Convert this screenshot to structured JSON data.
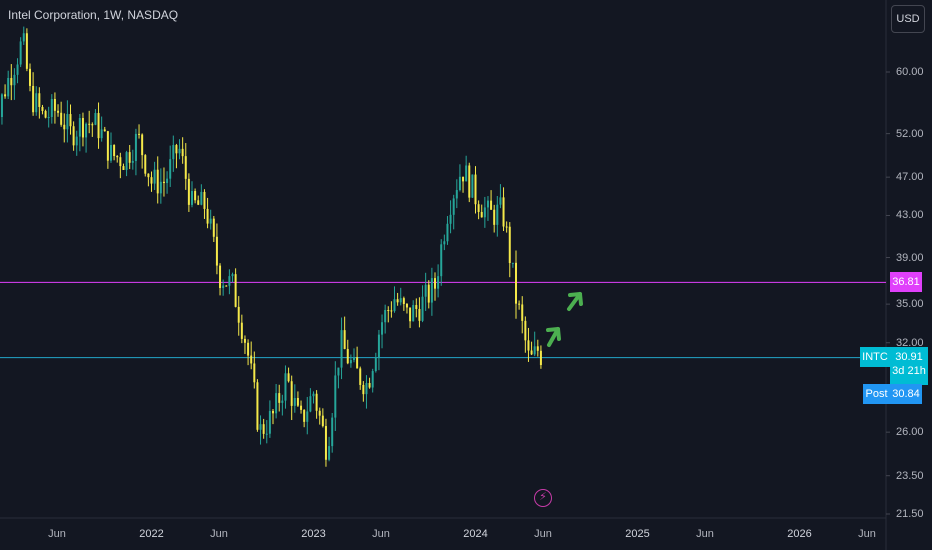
{
  "header": {
    "title": "Intel Corporation, 1W, NASDAQ",
    "currency_label": "USD"
  },
  "chart_data": {
    "type": "candlestick",
    "symbol": "INTC",
    "interval": "1W",
    "exchange": "NASDAQ",
    "y_scale": "log",
    "y_ticks": [
      "60.00",
      "52.00",
      "47.00",
      "43.00",
      "39.00",
      "35.00",
      "32.00",
      "26.00",
      "23.50",
      "21.50"
    ],
    "y_tick_values": [
      60,
      52,
      47,
      43,
      39,
      35,
      32,
      26,
      23.5,
      21.5
    ],
    "x_ticks": [
      {
        "label": "Jun",
        "date": "2021-06",
        "major": false
      },
      {
        "label": "2022",
        "date": "2022-01",
        "major": true
      },
      {
        "label": "Jun",
        "date": "2022-06",
        "major": false
      },
      {
        "label": "2023",
        "date": "2023-01",
        "major": true
      },
      {
        "label": "Jun",
        "date": "2023-06",
        "major": false
      },
      {
        "label": "2024",
        "date": "2024-01",
        "major": true
      },
      {
        "label": "Jun",
        "date": "2024-06",
        "major": false
      },
      {
        "label": "2025",
        "date": "2025-01",
        "major": true
      },
      {
        "label": "Jun",
        "date": "2025-06",
        "major": false
      },
      {
        "label": "2026",
        "date": "2026-01",
        "major": true
      },
      {
        "label": "Jun",
        "date": "2026-06",
        "major": false
      }
    ],
    "series": [
      {
        "name": "INTC",
        "close_points": [
          [
            "2021-01",
            48.5
          ],
          [
            "2021-02",
            57
          ],
          [
            "2021-03",
            62
          ],
          [
            "2021-03-15",
            64.5
          ],
          [
            "2021-04",
            57
          ],
          [
            "2021-05",
            54
          ],
          [
            "2021-06",
            55
          ],
          [
            "2021-07",
            52
          ],
          [
            "2021-08",
            53.5
          ],
          [
            "2021-09",
            53
          ],
          [
            "2021-10",
            49.5
          ],
          [
            "2021-11",
            49
          ],
          [
            "2021-12",
            51.5
          ],
          [
            "2022-01",
            46.5
          ],
          [
            "2022-02",
            46.5
          ],
          [
            "2022-03",
            50.5
          ],
          [
            "2022-04",
            44
          ],
          [
            "2022-05",
            44
          ],
          [
            "2022-06",
            37.5
          ],
          [
            "2022-07",
            36.5
          ],
          [
            "2022-08",
            32
          ],
          [
            "2022-09",
            26
          ],
          [
            "2022-10",
            27
          ],
          [
            "2022-11",
            29.5
          ],
          [
            "2022-12",
            26.5
          ],
          [
            "2023-01",
            28.5
          ],
          [
            "2023-02",
            25
          ],
          [
            "2023-03",
            32
          ],
          [
            "2023-04",
            30
          ],
          [
            "2023-05",
            29
          ],
          [
            "2023-06",
            33.5
          ],
          [
            "2023-07",
            35.5
          ],
          [
            "2023-08",
            34
          ],
          [
            "2023-09",
            35
          ],
          [
            "2023-10",
            36.5
          ],
          [
            "2023-11",
            44
          ],
          [
            "2023-12",
            48
          ],
          [
            "2024-01",
            45
          ],
          [
            "2024-02",
            43
          ],
          [
            "2024-03",
            43.5
          ],
          [
            "2024-04",
            35.5
          ],
          [
            "2024-05",
            30.5
          ],
          [
            "2024-05-20",
            31.5
          ],
          [
            "2024-06",
            30.9
          ]
        ]
      }
    ],
    "horizontal_lines": [
      {
        "price": 36.81,
        "color": "#e040fb",
        "label": "36.81"
      },
      {
        "price": 30.91,
        "color": "#22a7c9",
        "label": "30.91"
      }
    ],
    "last_price": {
      "symbol": "INTC",
      "price": "30.91",
      "countdown": "3d 21h",
      "color": "#00bcd4"
    },
    "post_market": {
      "label": "Post",
      "price": "30.84",
      "color": "#2196f3"
    },
    "annotations": [
      {
        "type": "arrow",
        "color": "#4caf50",
        "count": 2
      }
    ],
    "colors": {
      "up": "#26a69a",
      "down": "#f5e94a",
      "background": "#131722",
      "grid": "#1e222d"
    },
    "grid": true
  }
}
